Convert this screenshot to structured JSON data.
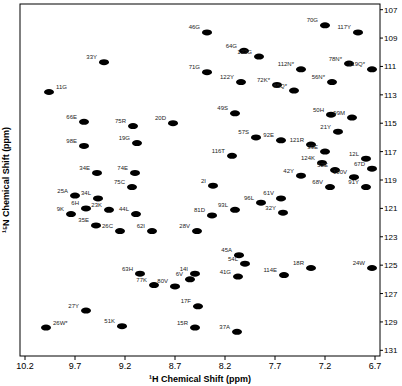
{
  "chart_data": {
    "type": "scatter",
    "x_label": "¹H Chemical Shift (ppm)",
    "y_label": "¹⁵N Chemical Shift (ppm)",
    "xlim": [
      10.25,
      6.65
    ],
    "ylim": [
      106.6,
      131.4
    ],
    "xticks": [
      10.2,
      9.7,
      9.2,
      8.7,
      8.2,
      7.7,
      7.2,
      6.7
    ],
    "yticks": [
      107,
      109,
      111,
      113,
      115,
      117,
      119,
      121,
      123,
      125,
      127,
      129,
      131
    ],
    "color": "#000000",
    "marker": "ellipse",
    "point_labels": [
      "70G",
      "117Y",
      "46G",
      "64G",
      "123G",
      "33Y",
      "78N*",
      "119Q*",
      "112N*",
      "71G",
      "72K*",
      "122Y",
      "85Q*",
      "56N*",
      "11G",
      "66E",
      "75R",
      "20D",
      "50H",
      "99M",
      "21Y",
      "98E",
      "19G",
      "116T",
      "121R",
      "39E",
      "124K",
      "52E",
      "12L",
      "67D",
      "34E",
      "74E",
      "75C",
      "42Y",
      "68V",
      "100V",
      "91Y",
      "25A",
      "34L",
      "6H",
      "9K",
      "23K",
      "44L",
      "35E",
      "26C",
      "62I",
      "28V",
      "81D",
      "45A",
      "54L",
      "41G",
      "114E",
      "18R",
      "24W",
      "14I",
      "6V",
      "63H",
      "77K",
      "80V",
      "17F",
      "27Y",
      "26W*",
      "51K",
      "15R",
      "37A",
      "57S",
      "92E",
      "2I",
      "61V",
      "32Y",
      "49S",
      "96L",
      "93L"
    ],
    "x": [
      7.2,
      6.87,
      8.38,
      8.01,
      7.86,
      9.41,
      6.96,
      6.73,
      7.44,
      8.38,
      7.68,
      8.04,
      7.51,
      7.13,
      9.96,
      9.61,
      9.12,
      8.72,
      7.14,
      6.93,
      7.07,
      9.61,
      9.08,
      8.13,
      7.34,
      7.2,
      7.23,
      7.1,
      6.79,
      6.73,
      9.48,
      9.1,
      9.13,
      7.44,
      7.15,
      6.91,
      6.79,
      9.7,
      9.47,
      9.59,
      9.74,
      9.36,
      9.09,
      9.49,
      9.25,
      8.93,
      8.48,
      8.33,
      8.06,
      8.0,
      8.07,
      7.61,
      7.34,
      6.73,
      8.5,
      8.55,
      9.05,
      8.91,
      8.7,
      8.47,
      9.59,
      9.99,
      9.23,
      8.5,
      8.08,
      7.89,
      7.64,
      8.32,
      7.64,
      7.62,
      8.1,
      7.84,
      8.1
    ],
    "values": [
      108.1,
      108.6,
      108.6,
      109.9,
      110.3,
      110.7,
      110.8,
      111.2,
      111.2,
      111.4,
      112.3,
      112.1,
      112.7,
      112.1,
      112.8,
      114.9,
      115.2,
      115.0,
      114.4,
      114.6,
      115.6,
      116.6,
      116.4,
      117.3,
      116.5,
      117.0,
      117.8,
      118.3,
      117.5,
      118.2,
      118.5,
      118.5,
      119.5,
      118.7,
      119.5,
      118.8,
      119.5,
      120.1,
      120.3,
      121.0,
      121.4,
      121.1,
      121.4,
      122.2,
      122.6,
      122.6,
      122.6,
      121.5,
      124.3,
      124.9,
      125.8,
      125.7,
      125.2,
      125.2,
      125.6,
      126.0,
      125.6,
      126.4,
      126.5,
      127.9,
      128.2,
      129.4,
      129.3,
      129.4,
      129.7,
      116.0,
      116.2,
      119.4,
      120.3,
      121.3,
      114.3,
      120.6,
      121.1
    ]
  }
}
